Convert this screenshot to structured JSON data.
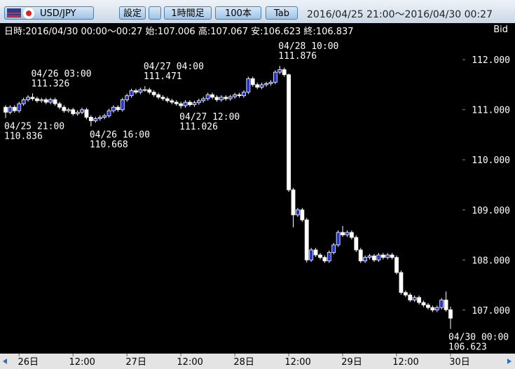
{
  "toolbar": {
    "symbol": "USD/JPY",
    "settings": "設定",
    "timeframe": "1時間足",
    "count": "100本",
    "tab": "Tab",
    "range": "2016/04/25 21:00～2016/04/30 00:27"
  },
  "info": {
    "date_label": "日時:",
    "date": "2016/04/30 00:00～00:27",
    "open_label": "始:",
    "high_label": "高:",
    "low_label": "安:",
    "close_label": "終:",
    "side": "Bid"
  },
  "chart_data": {
    "type": "candlestick",
    "series": {
      "up_color": "#2233cc",
      "down_color": "#ffffff",
      "open": [
        111.05,
        110.95,
        111.05,
        110.98,
        111.12,
        111.2,
        111.25,
        111.22,
        111.18,
        111.2,
        111.15,
        111.2,
        111.12,
        111.05,
        110.98,
        111.0,
        110.92,
        110.95,
        111.0,
        110.85,
        110.78,
        110.82,
        110.85,
        110.88,
        110.98,
        111.05,
        111.0,
        111.2,
        111.28,
        111.38,
        111.35,
        111.4,
        111.4,
        111.35,
        111.3,
        111.25,
        111.22,
        111.18,
        111.15,
        111.12,
        111.08,
        111.15,
        111.1,
        111.14,
        111.18,
        111.22,
        111.3,
        111.25,
        111.2,
        111.25,
        111.22,
        111.26,
        111.3,
        111.28,
        111.35,
        111.62,
        111.5,
        111.45,
        111.5,
        111.52,
        111.55,
        111.75,
        111.8,
        111.7,
        109.4,
        108.9,
        109.0,
        108.8,
        108.0,
        108.2,
        108.1,
        108.05,
        107.98,
        108.15,
        108.3,
        108.55,
        108.5,
        108.55,
        108.45,
        108.2,
        107.98,
        108.05,
        108.08,
        108.0,
        108.1,
        108.05,
        108.1,
        108.05,
        107.75,
        107.35,
        107.3,
        107.2,
        107.25,
        107.15,
        107.1,
        107.05,
        107.0,
        107.05,
        107.2,
        107.006
      ],
      "high": [
        111.09,
        111.09,
        111.09,
        111.16,
        111.24,
        111.29,
        111.326,
        111.26,
        111.24,
        111.24,
        111.24,
        111.24,
        111.16,
        111.09,
        111.04,
        111.04,
        110.99,
        111.04,
        111.04,
        110.89,
        110.86,
        110.89,
        110.92,
        111.02,
        111.09,
        111.09,
        111.24,
        111.32,
        111.42,
        111.42,
        111.44,
        111.471,
        111.44,
        111.39,
        111.34,
        111.29,
        111.26,
        111.22,
        111.19,
        111.16,
        111.19,
        111.19,
        111.18,
        111.22,
        111.26,
        111.34,
        111.34,
        111.29,
        111.29,
        111.29,
        111.3,
        111.34,
        111.34,
        111.39,
        111.66,
        111.66,
        111.54,
        111.54,
        111.56,
        111.59,
        111.79,
        111.876,
        111.84,
        111.72,
        109.44,
        109.04,
        109.04,
        108.84,
        108.24,
        108.24,
        108.14,
        108.09,
        108.19,
        108.34,
        108.59,
        108.68,
        108.59,
        108.59,
        108.49,
        108.24,
        108.09,
        108.12,
        108.12,
        108.14,
        108.14,
        108.14,
        108.14,
        108.09,
        107.79,
        107.39,
        107.34,
        107.29,
        107.29,
        107.19,
        107.14,
        107.09,
        107.09,
        107.24,
        107.37,
        107.067
      ],
      "low": [
        110.836,
        110.91,
        110.94,
        110.94,
        111.08,
        111.16,
        111.18,
        111.14,
        111.14,
        111.11,
        111.11,
        111.08,
        111.01,
        110.94,
        110.94,
        110.88,
        110.88,
        110.91,
        110.81,
        110.668,
        110.74,
        110.78,
        110.81,
        110.84,
        110.94,
        110.96,
        110.96,
        111.16,
        111.24,
        111.31,
        111.31,
        111.36,
        111.31,
        111.26,
        111.21,
        111.18,
        111.14,
        111.11,
        111.08,
        111.026,
        111.04,
        111.06,
        111.06,
        111.1,
        111.14,
        111.18,
        111.21,
        111.16,
        111.16,
        111.18,
        111.18,
        111.22,
        111.24,
        111.24,
        111.31,
        111.46,
        111.41,
        111.41,
        111.46,
        111.48,
        111.51,
        111.71,
        111.66,
        109.36,
        108.65,
        108.86,
        108.76,
        107.95,
        107.96,
        108.06,
        108.01,
        107.94,
        107.94,
        108.11,
        108.26,
        108.46,
        108.46,
        108.41,
        108.16,
        107.94,
        107.94,
        108.01,
        107.96,
        107.96,
        108.01,
        108.01,
        108.01,
        107.71,
        107.31,
        107.26,
        107.16,
        107.16,
        107.11,
        107.06,
        107.01,
        106.96,
        106.96,
        107.01,
        106.97,
        106.623
      ],
      "close": [
        110.95,
        111.05,
        110.98,
        111.12,
        111.2,
        111.25,
        111.22,
        111.18,
        111.2,
        111.15,
        111.2,
        111.12,
        111.05,
        110.98,
        111.0,
        110.92,
        110.95,
        111.0,
        110.85,
        110.78,
        110.82,
        110.85,
        110.88,
        110.98,
        111.05,
        111.0,
        111.2,
        111.28,
        111.38,
        111.35,
        111.4,
        111.4,
        111.35,
        111.3,
        111.25,
        111.22,
        111.18,
        111.15,
        111.12,
        111.08,
        111.15,
        111.1,
        111.14,
        111.18,
        111.22,
        111.3,
        111.25,
        111.2,
        111.25,
        111.22,
        111.26,
        111.3,
        111.28,
        111.35,
        111.62,
        111.5,
        111.45,
        111.5,
        111.52,
        111.55,
        111.75,
        111.8,
        111.7,
        109.4,
        108.9,
        109.0,
        108.8,
        108.0,
        108.2,
        108.1,
        108.05,
        107.98,
        108.15,
        108.3,
        108.55,
        108.5,
        108.55,
        108.45,
        108.2,
        107.98,
        108.05,
        108.08,
        108.0,
        108.1,
        108.05,
        108.1,
        108.05,
        107.75,
        107.35,
        107.3,
        107.2,
        107.25,
        107.15,
        107.1,
        107.05,
        107.0,
        107.05,
        107.2,
        107.006,
        106.837
      ]
    },
    "annotations": [
      {
        "time": "04/25 21:00",
        "price": 110.836
      },
      {
        "time": "04/26 03:00",
        "price": 111.326
      },
      {
        "time": "04/26 16:00",
        "price": 110.668
      },
      {
        "time": "04/27 04:00",
        "price": 111.471
      },
      {
        "time": "04/27 12:00",
        "price": 111.026
      },
      {
        "time": "04/28 10:00",
        "price": 111.876
      },
      {
        "time": "04/30 00:00",
        "price": 106.623
      }
    ],
    "xlim": [
      0,
      99
    ],
    "xticks": [
      {
        "value": 3,
        "label": "26日"
      },
      {
        "value": 15,
        "label": "12:00"
      },
      {
        "value": 27,
        "label": "27日"
      },
      {
        "value": 39,
        "label": "12:00"
      },
      {
        "value": 51,
        "label": "28日"
      },
      {
        "value": 63,
        "label": "12:00"
      },
      {
        "value": 75,
        "label": "29日"
      },
      {
        "value": 87,
        "label": "12:00"
      },
      {
        "value": 99,
        "label": "30日"
      }
    ],
    "ylim": [
      106.13,
      112.73
    ],
    "yticks": [
      {
        "value": 107,
        "label": "107.000"
      },
      {
        "value": 108,
        "label": "108.000"
      },
      {
        "value": 109,
        "label": "109.000"
      },
      {
        "value": 110,
        "label": "110.000"
      },
      {
        "value": 111,
        "label": "111.000"
      },
      {
        "value": 112,
        "label": "112.000"
      }
    ]
  }
}
